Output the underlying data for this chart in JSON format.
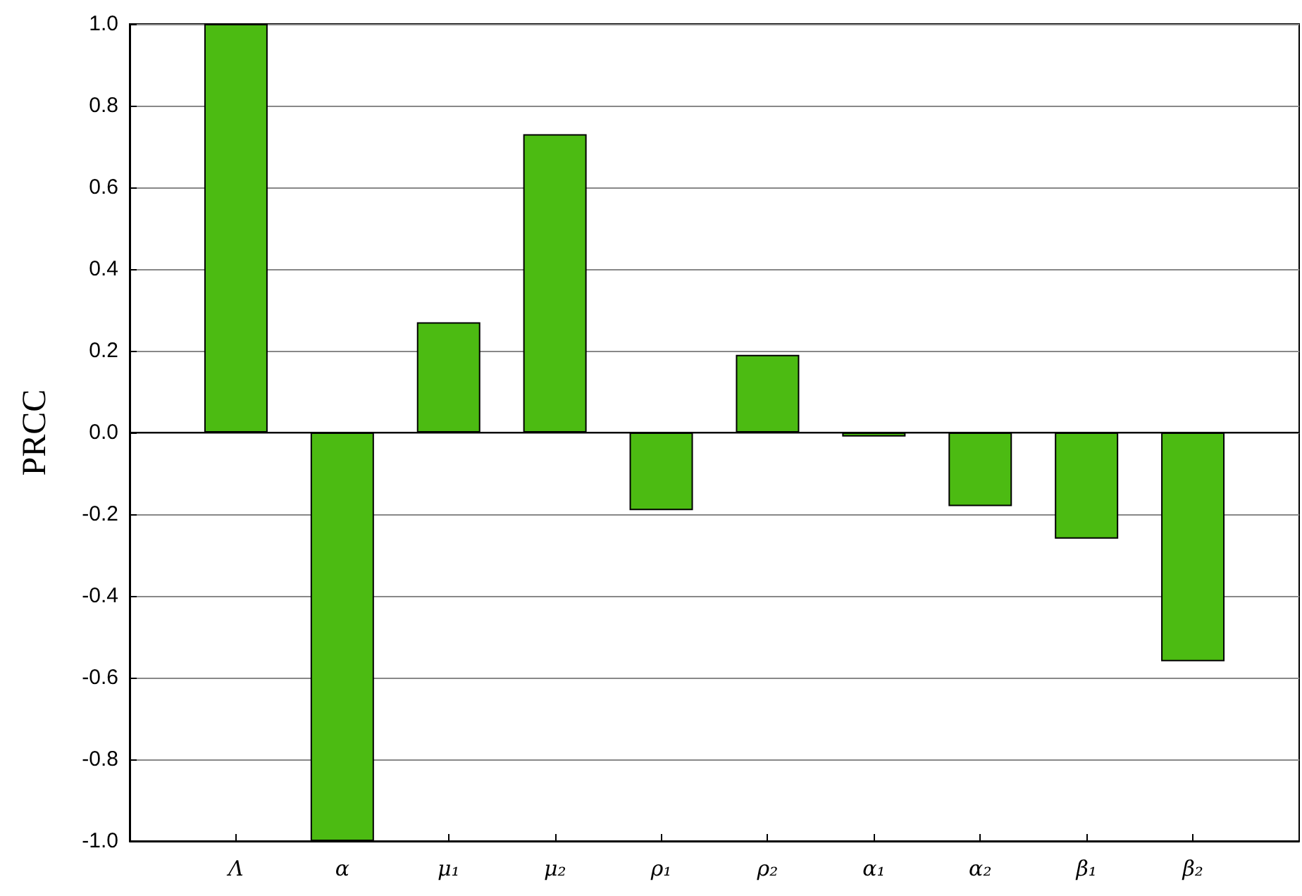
{
  "chart_data": {
    "type": "bar",
    "ylabel": "PRCC",
    "categories": [
      "Λ",
      "α",
      "μ₁",
      "μ₂",
      "ρ₁",
      "ρ₂",
      "α₁",
      "α₂",
      "β₁",
      "β₂"
    ],
    "values": [
      1.0,
      -1.0,
      0.27,
      0.73,
      -0.19,
      0.19,
      -0.01,
      -0.18,
      -0.26,
      -0.56
    ],
    "color": "#4cbb12",
    "ylim": [
      -1,
      1
    ],
    "yticks": [
      {
        "value": -1,
        "label": "-1.0"
      },
      {
        "value": -0.8,
        "label": "-0.8"
      },
      {
        "value": -0.6,
        "label": "-0.6"
      },
      {
        "value": -0.4,
        "label": "-0.4"
      },
      {
        "value": -0.2,
        "label": "-0.2"
      },
      {
        "value": 0,
        "label": "0.0"
      },
      {
        "value": 0.2,
        "label": "0.2"
      },
      {
        "value": 0.4,
        "label": "0.4"
      },
      {
        "value": 0.6,
        "label": "0.6"
      },
      {
        "value": 0.8,
        "label": "0.8"
      },
      {
        "value": 1,
        "label": "1.0"
      }
    ],
    "grid": "y"
  }
}
